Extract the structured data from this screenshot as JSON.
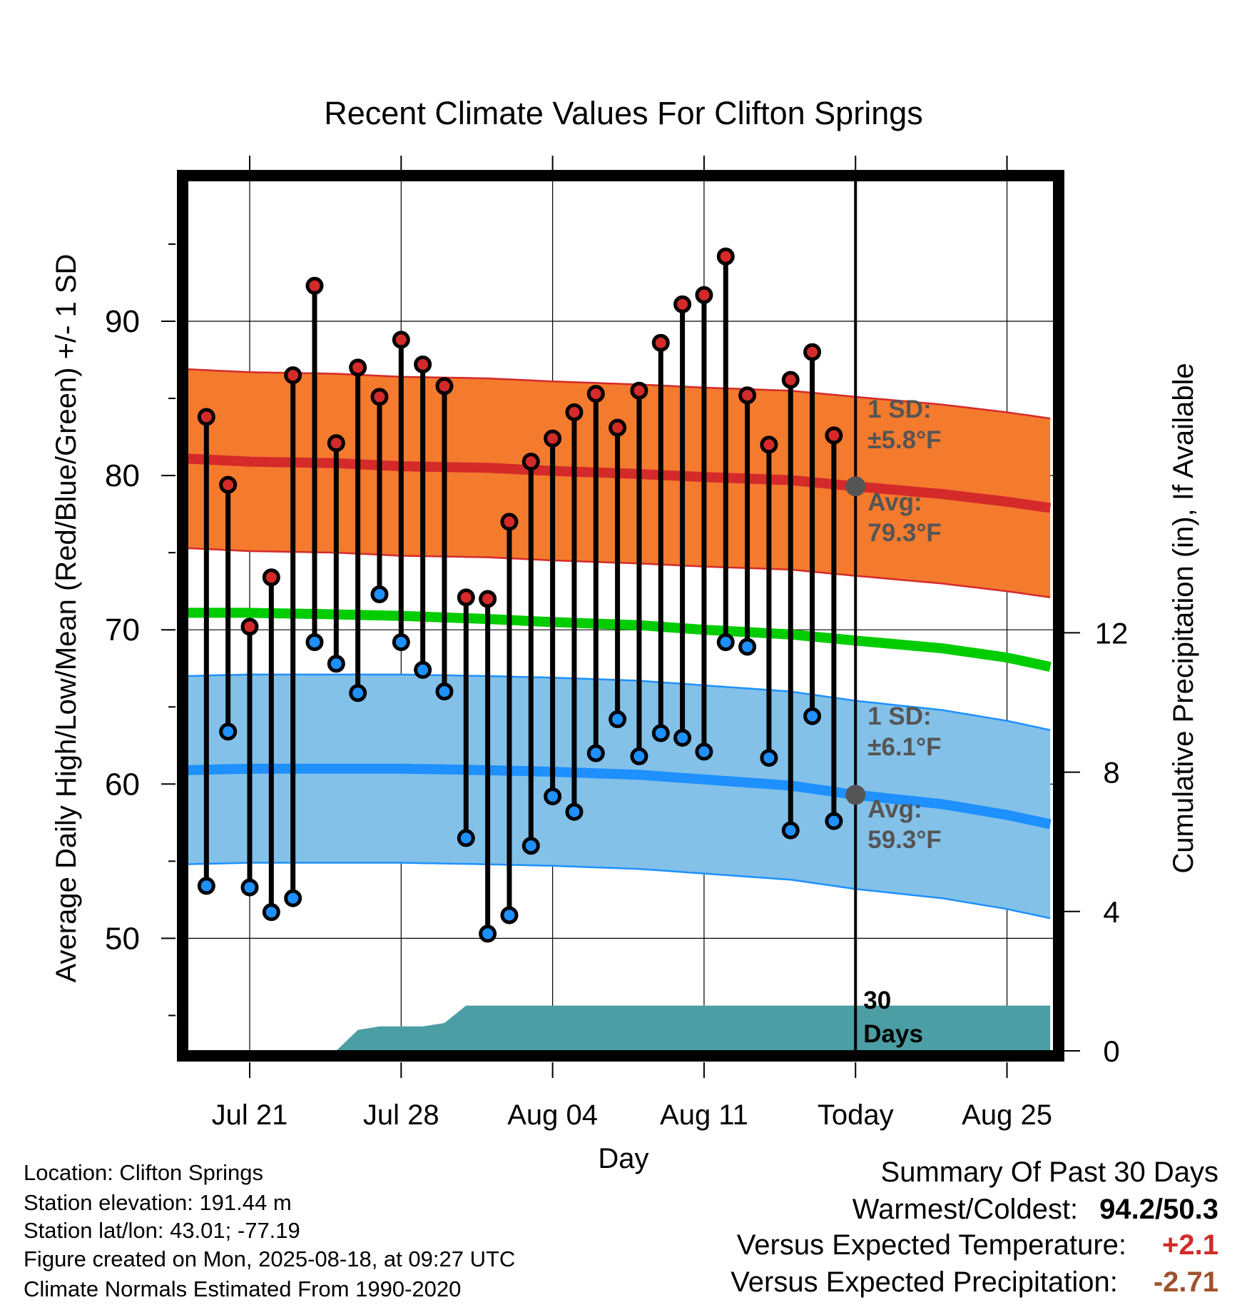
{
  "chart_data": {
    "type": "line",
    "title": "Recent Climate Values For Clifton Springs",
    "xlabel": "Day",
    "ylabel": "Average Daily High/Low/Mean (Red/Blue/Green) +/- 1 SD",
    "y2label": "Cumulative Precipitation (in), If Available",
    "x_range": [
      "Jul 18",
      "Aug 27"
    ],
    "ylim": [
      43,
      98
    ],
    "y2lim": [
      0,
      24
    ],
    "x_tick_labels": [
      {
        "date": "Jul 21",
        "label": "Jul 21"
      },
      {
        "date": "Jul 28",
        "label": "Jul 28"
      },
      {
        "date": "Aug 04",
        "label": "Aug 04"
      },
      {
        "date": "Aug 11",
        "label": "Aug 11"
      },
      {
        "date": "Aug 18",
        "label": "Today"
      },
      {
        "date": "Aug 25",
        "label": "Aug 25"
      }
    ],
    "y_ticks": [
      50,
      60,
      70,
      80,
      90
    ],
    "y2_ticks": [
      0,
      4,
      8,
      12
    ],
    "grid": true,
    "today": "Aug 18",
    "today_label": "30 Days",
    "days": [
      "Jul 19",
      "Jul 20",
      "Jul 21",
      "Jul 22",
      "Jul 23",
      "Jul 24",
      "Jul 25",
      "Jul 26",
      "Jul 27",
      "Jul 28",
      "Jul 29",
      "Jul 30",
      "Jul 31",
      "Aug 01",
      "Aug 02",
      "Aug 03",
      "Aug 04",
      "Aug 05",
      "Aug 06",
      "Aug 07",
      "Aug 08",
      "Aug 09",
      "Aug 10",
      "Aug 11",
      "Aug 12",
      "Aug 13",
      "Aug 14",
      "Aug 15",
      "Aug 16",
      "Aug 17"
    ],
    "series": [
      {
        "name": "High",
        "color": "#d42a2a",
        "values": [
          83.8,
          79.4,
          70.2,
          73.4,
          86.5,
          92.3,
          82.1,
          87.0,
          85.1,
          88.8,
          87.2,
          85.8,
          72.1,
          72.0,
          77.0,
          80.9,
          82.4,
          84.1,
          85.3,
          83.1,
          85.5,
          88.6,
          91.1,
          91.7,
          94.2,
          85.2,
          82.0,
          86.2,
          88.0,
          82.6
        ]
      },
      {
        "name": "Low",
        "color": "#1e90ff",
        "values": [
          53.4,
          63.4,
          53.3,
          51.7,
          52.6,
          69.2,
          67.8,
          65.9,
          72.3,
          69.2,
          67.4,
          66.0,
          56.5,
          50.3,
          51.5,
          56.0,
          59.2,
          58.2,
          62.0,
          64.2,
          61.8,
          63.3,
          63.0,
          62.1,
          69.2,
          68.9,
          61.7,
          57.0,
          64.4,
          57.6
        ]
      }
    ],
    "normals": {
      "x_dates": [
        "Jul 18",
        "Jul 21",
        "Jul 25",
        "Jul 28",
        "Aug 01",
        "Aug 04",
        "Aug 08",
        "Aug 11",
        "Aug 15",
        "Aug 18",
        "Aug 22",
        "Aug 25",
        "Aug 27"
      ],
      "high_avg": [
        81.1,
        80.9,
        80.8,
        80.6,
        80.5,
        80.3,
        80.1,
        79.9,
        79.7,
        79.3,
        78.8,
        78.3,
        77.9
      ],
      "low_avg": [
        60.9,
        61.0,
        61.0,
        61.0,
        60.9,
        60.8,
        60.6,
        60.3,
        59.9,
        59.3,
        58.7,
        58.0,
        57.4
      ],
      "mean_avg": [
        71.1,
        71.1,
        71.0,
        70.9,
        70.7,
        70.5,
        70.3,
        70.0,
        69.7,
        69.3,
        68.8,
        68.2,
        67.6
      ],
      "high_sd": 5.8,
      "low_sd": 6.1,
      "high_sd_label": "1 SD:",
      "high_sd_value": "±5.8°F",
      "high_avg_label": "Avg:",
      "high_avg_value": "79.3°F",
      "low_sd_label": "1 SD:",
      "low_sd_value": "±6.1°F",
      "low_avg_label": "Avg:",
      "low_avg_value": "59.3°F",
      "colors": {
        "high_band": "#f47a2e",
        "high_line": "#d42a2a",
        "low_band": "#83c1e8",
        "low_line": "#1e90ff",
        "mean_line": "#00cc00"
      }
    },
    "precipitation": {
      "color": "#4b9ea3",
      "x_dates": [
        "Jul 18",
        "Jul 25",
        "Jul 26",
        "Jul 27",
        "Jul 29",
        "Jul 30",
        "Jul 31",
        "Aug 27"
      ],
      "values": [
        0,
        0,
        0.6,
        0.7,
        0.7,
        0.8,
        1.3,
        1.3
      ]
    }
  },
  "footer_left": {
    "location": "Location: Clifton Springs",
    "elevation": "Station elevation: 191.44 m",
    "latlon": "Station lat/lon: 43.01; -77.19",
    "created": "Figure created on Mon, 2025-08-18, at 09:27 UTC",
    "normals": "Climate Normals Estimated From 1990-2020"
  },
  "summary": {
    "title": "Summary Of Past 30 Days",
    "warmest_coldest_label": "Warmest/Coldest:",
    "warmest_coldest_value": "94.2/50.3",
    "temp_label": "Versus Expected Temperature:",
    "temp_value": "+2.1",
    "temp_color": "#d42a2a",
    "precip_label": "Versus Expected Precipitation:",
    "precip_value": "-2.71",
    "precip_color": "#a0522d"
  }
}
